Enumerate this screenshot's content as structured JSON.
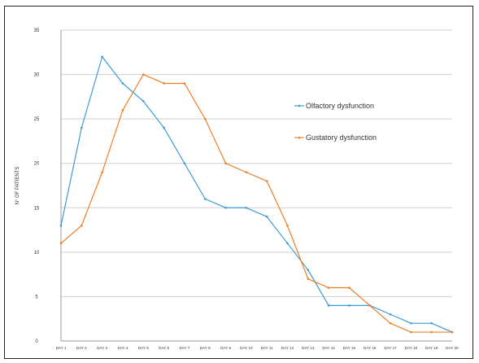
{
  "chart_data": {
    "type": "line",
    "title": "",
    "xlabel": "",
    "ylabel": "N° OF PATIENTS",
    "ylim": [
      0,
      35
    ],
    "yticks": [
      0,
      5,
      10,
      15,
      20,
      25,
      30,
      35
    ],
    "grid": true,
    "legend_position": "right",
    "categories": [
      "DAY 1",
      "DAY 2",
      "DAY 3",
      "DAY 4",
      "DAY 5",
      "DAY 6",
      "DAY 7",
      "DAY 8",
      "DAY 9",
      "DAY 10",
      "DAY 11",
      "DAY 12",
      "DAY 13",
      "DAY 14",
      "DAY 15",
      "DAY 16",
      "DAY 17",
      "DAY 18",
      "DAY 19",
      "DAY 20"
    ],
    "series": [
      {
        "name": "Olfactory dysfunction",
        "color": "#3d9bd6",
        "values": [
          13,
          24,
          32,
          29,
          27,
          24,
          20,
          16,
          15,
          15,
          14,
          11,
          8,
          4,
          4,
          4,
          3,
          2,
          2,
          1
        ]
      },
      {
        "name": "Gustatory dysfunction",
        "color": "#f07e26",
        "values": [
          11,
          13,
          19,
          26,
          30,
          29,
          29,
          25,
          20,
          19,
          18,
          13,
          7,
          6,
          6,
          4,
          2,
          1,
          1,
          1
        ]
      }
    ]
  }
}
